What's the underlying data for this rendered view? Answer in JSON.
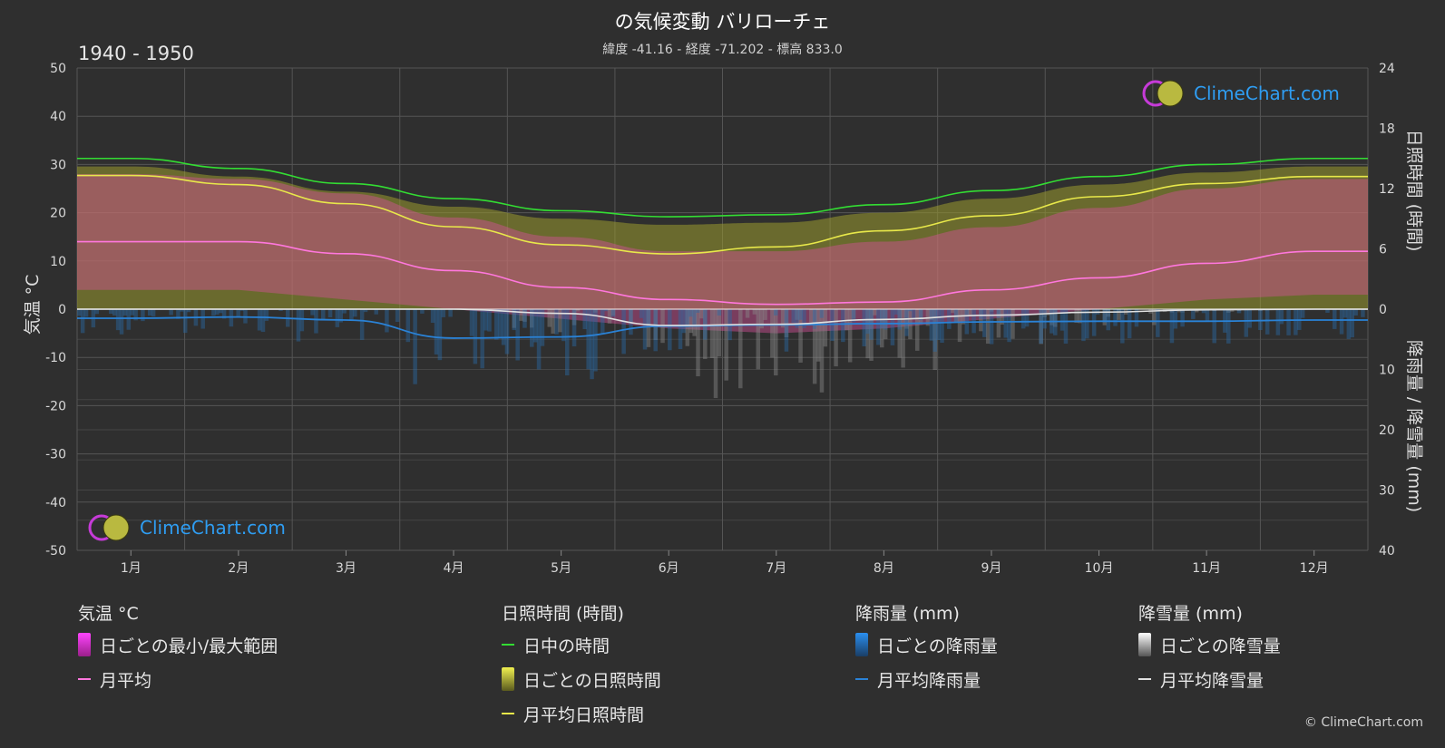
{
  "header": {
    "title": "の気候変動 バリローチェ",
    "subtitle": "緯度 -41.16 - 経度 -71.202 - 標高 833.0",
    "period": "1940 - 1950"
  },
  "logo": {
    "text": "ClimeChart.com"
  },
  "copyright": "© ClimeChart.com",
  "axes": {
    "left_label": "気温 °C",
    "right_top_label": "日照時間 (時間)",
    "right_bottom_label": "降雨量 / 降雪量 (mm)",
    "left_ticks": [
      "50",
      "40",
      "30",
      "20",
      "10",
      "0",
      "-10",
      "-20",
      "-30",
      "-40",
      "-50"
    ],
    "right_top_ticks": [
      "24",
      "18",
      "12",
      "6",
      "0"
    ],
    "right_bottom_ticks": [
      "10",
      "20",
      "30",
      "40"
    ]
  },
  "legend": {
    "temperature": {
      "title": "気温 °C",
      "range": "日ごとの最小/最大範囲",
      "avg": "月平均"
    },
    "sunshine": {
      "title": "日照時間 (時間)",
      "daylight": "日中の時間",
      "daily": "日ごとの日照時間",
      "avg": "月平均日照時間"
    },
    "rain": {
      "title": "降雨量 (mm)",
      "daily": "日ごとの降雨量",
      "avg": "月平均降雨量"
    },
    "snow": {
      "title": "降雪量 (mm)",
      "daily": "日ごとの降雪量",
      "avg": "月平均降雪量"
    }
  },
  "colors": {
    "daylight": "#33dd33",
    "sunshine_avg": "#e8e84a",
    "sunshine_fill": "#9a9a2e",
    "temp_fill": "#d4509a",
    "temp_avg": "#ff77dd",
    "rain": "#2a82d6",
    "snow": "#e0e0e0"
  },
  "chart_data": {
    "type": "area",
    "categories": [
      "1月",
      "2月",
      "3月",
      "4月",
      "5月",
      "6月",
      "7月",
      "8月",
      "9月",
      "10月",
      "11月",
      "12月"
    ],
    "ylim_left": [
      -50,
      50
    ],
    "ylim_right_sunshine": [
      0,
      24
    ],
    "ylim_right_precip": [
      0,
      40
    ],
    "grid": true,
    "series": [
      {
        "name": "日中の時間",
        "axis": "sunshine",
        "values": [
          15.0,
          14.0,
          12.5,
          11.0,
          9.8,
          9.2,
          9.4,
          10.4,
          11.8,
          13.2,
          14.4,
          15.0
        ]
      },
      {
        "name": "月平均日照時間",
        "axis": "sunshine",
        "values": [
          13.3,
          12.4,
          10.5,
          8.2,
          6.4,
          5.5,
          6.2,
          7.8,
          9.3,
          11.2,
          12.5,
          13.2
        ]
      },
      {
        "name": "月平均",
        "axis": "temperature",
        "values": [
          14.0,
          14.0,
          11.5,
          8.0,
          4.5,
          2.0,
          1.0,
          1.5,
          4.0,
          6.5,
          9.5,
          12.0
        ]
      },
      {
        "name": "月平均降雨量",
        "axis": "precip",
        "values": [
          1.5,
          1.3,
          1.8,
          4.8,
          4.6,
          2.8,
          2.6,
          2.4,
          2.1,
          2.0,
          2.0,
          1.8
        ]
      },
      {
        "name": "月平均降雪量",
        "axis": "precip",
        "values": [
          0.0,
          0.0,
          0.0,
          0.0,
          0.7,
          2.7,
          2.5,
          1.7,
          1.0,
          0.5,
          0.1,
          0.0
        ]
      }
    ],
    "temperature_range": {
      "max": [
        28,
        27,
        24,
        19,
        15,
        12,
        12,
        14,
        17,
        21,
        25,
        27
      ],
      "min": [
        4,
        4,
        2,
        0,
        -2,
        -4,
        -5,
        -4,
        -2,
        0,
        2,
        3
      ]
    }
  }
}
